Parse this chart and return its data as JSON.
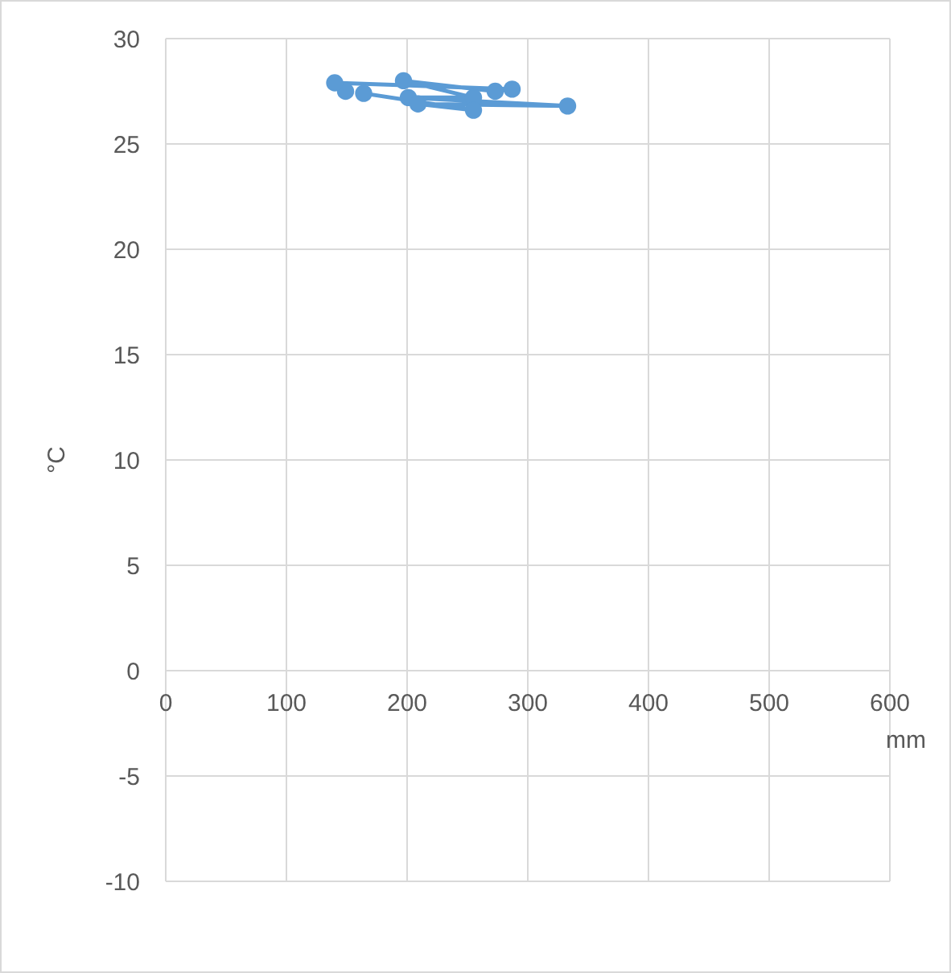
{
  "chart_data": {
    "type": "line",
    "xlabel": "mm",
    "ylabel": "°C",
    "marker": "circle",
    "grid": true,
    "xlim": [
      0,
      600
    ],
    "xticks": [
      0,
      100,
      200,
      300,
      400,
      500,
      600
    ],
    "ylim": [
      -10,
      30
    ],
    "yticks": [
      -10,
      -5,
      0,
      5,
      10,
      15,
      20,
      25,
      30
    ],
    "series": [
      {
        "color": "#5b9bd5",
        "x": [
          149,
          140,
          287,
          273,
          197,
          255,
          201,
          333,
          209,
          255,
          164
        ],
        "values": [
          27.5,
          27.9,
          27.6,
          27.5,
          28.0,
          27.2,
          27.2,
          26.8,
          26.9,
          26.6,
          27.4
        ]
      }
    ]
  }
}
